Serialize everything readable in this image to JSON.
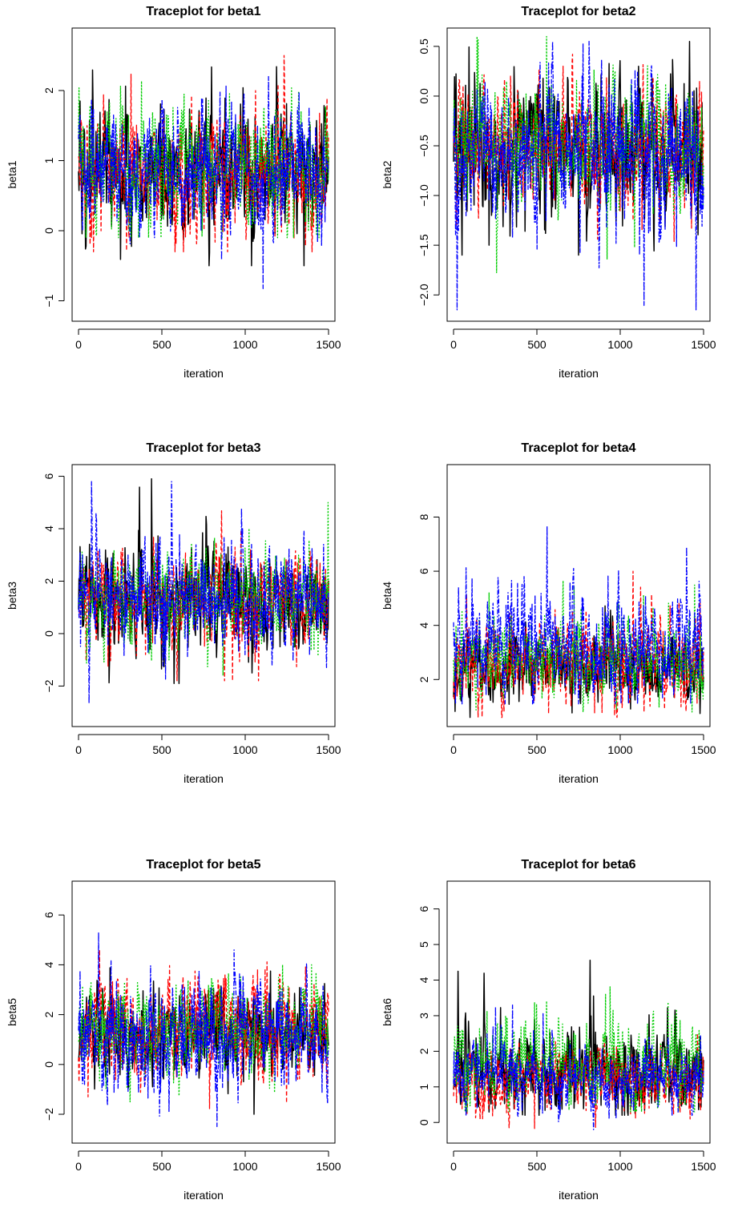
{
  "colors": {
    "chain1": "#000000",
    "chain2": "#ff0000",
    "chain3": "#00cd00",
    "chain4": "#0000ff"
  },
  "chart_data": [
    {
      "type": "line",
      "title": "Traceplot for beta1",
      "xlabel": "iteration",
      "ylabel": "beta1",
      "xlim": [
        0,
        1500
      ],
      "ylim": [
        -1.2,
        2.8
      ],
      "xticks": [
        0,
        500,
        1000,
        1500
      ],
      "yticks": [
        -1,
        0,
        1,
        2
      ],
      "grid": false,
      "legend": "none",
      "series": [
        {
          "color": "#000000",
          "dash": "",
          "width": 1.5,
          "center": 0.85,
          "spread": 0.42,
          "lo": -0.5,
          "hi": 2.6,
          "seed": 11
        },
        {
          "color": "#ff0000",
          "dash": "5,3",
          "width": 1.3,
          "center": 0.8,
          "spread": 0.4,
          "lo": -0.3,
          "hi": 2.5,
          "seed": 12
        },
        {
          "color": "#00cd00",
          "dash": "2,2",
          "width": 1.3,
          "center": 0.95,
          "spread": 0.42,
          "lo": -0.1,
          "hi": 2.7,
          "seed": 13
        },
        {
          "color": "#0000ff",
          "dash": "6,2,2,2",
          "width": 1.3,
          "center": 0.85,
          "spread": 0.42,
          "lo": -1.15,
          "hi": 2.2,
          "seed": 14
        }
      ]
    },
    {
      "type": "line",
      "title": "Traceplot for beta2",
      "xlabel": "iteration",
      "ylabel": "beta2",
      "xlim": [
        0,
        1500
      ],
      "ylim": [
        -2.2,
        0.62
      ],
      "xticks": [
        0,
        500,
        1000,
        1500
      ],
      "yticks": [
        -2.0,
        -1.5,
        -1.0,
        -0.5,
        0.0,
        0.5
      ],
      "tick_format": "fixed1",
      "grid": false,
      "legend": "none",
      "series": [
        {
          "color": "#000000",
          "dash": "",
          "width": 1.5,
          "center": -0.55,
          "spread": 0.32,
          "lo": -1.6,
          "hi": 0.55,
          "seed": 21
        },
        {
          "color": "#ff0000",
          "dash": "5,3",
          "width": 1.3,
          "center": -0.5,
          "spread": 0.3,
          "lo": -1.9,
          "hi": 0.42,
          "seed": 22
        },
        {
          "color": "#00cd00",
          "dash": "2,2",
          "width": 1.3,
          "center": -0.55,
          "spread": 0.32,
          "lo": -1.8,
          "hi": 0.6,
          "seed": 23
        },
        {
          "color": "#0000ff",
          "dash": "6,2,2,2",
          "width": 1.3,
          "center": -0.6,
          "spread": 0.34,
          "lo": -2.15,
          "hi": 0.55,
          "seed": 24
        }
      ]
    },
    {
      "type": "line",
      "title": "Traceplot for beta3",
      "xlabel": "iteration",
      "ylabel": "beta3",
      "xlim": [
        0,
        1500
      ],
      "ylim": [
        -3.3,
        6.2
      ],
      "xticks": [
        0,
        500,
        1000,
        1500
      ],
      "yticks": [
        -2,
        0,
        2,
        4,
        6
      ],
      "grid": false,
      "legend": "none",
      "series": [
        {
          "color": "#000000",
          "dash": "",
          "width": 1.5,
          "center": 1.2,
          "spread": 0.9,
          "lo": -1.9,
          "hi": 5.9,
          "seed": 31
        },
        {
          "color": "#ff0000",
          "dash": "5,3",
          "width": 1.3,
          "center": 1.3,
          "spread": 0.85,
          "lo": -1.8,
          "hi": 5.9,
          "seed": 32
        },
        {
          "color": "#00cd00",
          "dash": "2,2",
          "width": 1.3,
          "center": 1.3,
          "spread": 0.85,
          "lo": -1.6,
          "hi": 5.0,
          "seed": 33
        },
        {
          "color": "#0000ff",
          "dash": "6,2,2,2",
          "width": 1.3,
          "center": 1.2,
          "spread": 0.95,
          "lo": -3.1,
          "hi": 5.8,
          "seed": 34
        }
      ]
    },
    {
      "type": "line",
      "title": "Traceplot for beta4",
      "xlabel": "iteration",
      "ylabel": "beta4",
      "xlim": [
        0,
        1500
      ],
      "ylim": [
        0.5,
        9.7
      ],
      "xticks": [
        0,
        500,
        1000,
        1500
      ],
      "yticks": [
        2,
        4,
        6,
        8
      ],
      "grid": false,
      "legend": "none",
      "series": [
        {
          "color": "#000000",
          "dash": "",
          "width": 1.5,
          "center": 2.4,
          "spread": 0.55,
          "lo": 0.6,
          "hi": 5.0,
          "seed": 41
        },
        {
          "color": "#ff0000",
          "dash": "5,3",
          "width": 1.3,
          "center": 2.8,
          "spread": 0.75,
          "lo": 0.6,
          "hi": 6.0,
          "seed": 42
        },
        {
          "color": "#00cd00",
          "dash": "2,2",
          "width": 1.3,
          "center": 2.8,
          "spread": 0.7,
          "lo": 0.8,
          "hi": 6.3,
          "seed": 43
        },
        {
          "color": "#0000ff",
          "dash": "6,2,2,2",
          "width": 1.3,
          "center": 3.3,
          "spread": 0.9,
          "lo": 1.1,
          "hi": 9.5,
          "seed": 44
        }
      ]
    },
    {
      "type": "line",
      "title": "Traceplot for beta5",
      "xlabel": "iteration",
      "ylabel": "beta5",
      "xlim": [
        0,
        1500
      ],
      "ylim": [
        -2.9,
        7.1
      ],
      "xticks": [
        0,
        500,
        1000,
        1500
      ],
      "yticks": [
        -2,
        0,
        2,
        4,
        6
      ],
      "grid": false,
      "legend": "none",
      "series": [
        {
          "color": "#000000",
          "dash": "",
          "width": 1.5,
          "center": 1.3,
          "spread": 0.8,
          "lo": -2.0,
          "hi": 4.6,
          "seed": 51
        },
        {
          "color": "#ff0000",
          "dash": "5,3",
          "width": 1.3,
          "center": 1.5,
          "spread": 1.0,
          "lo": -2.3,
          "hi": 6.5,
          "seed": 52
        },
        {
          "color": "#00cd00",
          "dash": "2,2",
          "width": 1.3,
          "center": 1.5,
          "spread": 0.85,
          "lo": -1.5,
          "hi": 4.0,
          "seed": 53
        },
        {
          "color": "#0000ff",
          "dash": "6,2,2,2",
          "width": 1.3,
          "center": 1.2,
          "spread": 1.05,
          "lo": -2.8,
          "hi": 6.9,
          "seed": 54
        }
      ]
    },
    {
      "type": "line",
      "title": "Traceplot for beta6",
      "xlabel": "iteration",
      "ylabel": "beta6",
      "xlim": [
        0,
        1500
      ],
      "ylim": [
        -0.4,
        6.6
      ],
      "xticks": [
        0,
        500,
        1000,
        1500
      ],
      "yticks": [
        0,
        1,
        2,
        3,
        4,
        5,
        6
      ],
      "grid": false,
      "legend": "none",
      "series": [
        {
          "color": "#000000",
          "dash": "",
          "width": 1.5,
          "center": 1.45,
          "spread": 0.55,
          "lo": 0.2,
          "hi": 6.4,
          "seed": 61
        },
        {
          "color": "#ff0000",
          "dash": "5,3",
          "width": 1.3,
          "center": 1.2,
          "spread": 0.45,
          "lo": -0.3,
          "hi": 3.4,
          "seed": 62
        },
        {
          "color": "#00cd00",
          "dash": "2,2",
          "width": 1.3,
          "center": 1.6,
          "spread": 0.6,
          "lo": 0.3,
          "hi": 5.2,
          "seed": 63
        },
        {
          "color": "#0000ff",
          "dash": "6,2,2,2",
          "width": 1.3,
          "center": 1.2,
          "spread": 0.42,
          "lo": -0.2,
          "hi": 3.3,
          "seed": 64
        }
      ]
    }
  ]
}
